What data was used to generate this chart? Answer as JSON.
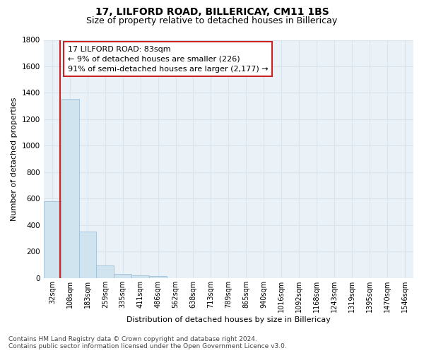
{
  "title1": "17, LILFORD ROAD, BILLERICAY, CM11 1BS",
  "title2": "Size of property relative to detached houses in Billericay",
  "xlabel": "Distribution of detached houses by size in Billericay",
  "ylabel": "Number of detached properties",
  "bar_labels": [
    "32sqm",
    "108sqm",
    "183sqm",
    "259sqm",
    "335sqm",
    "411sqm",
    "486sqm",
    "562sqm",
    "638sqm",
    "713sqm",
    "789sqm",
    "865sqm",
    "940sqm",
    "1016sqm",
    "1092sqm",
    "1168sqm",
    "1243sqm",
    "1319sqm",
    "1395sqm",
    "1470sqm",
    "1546sqm"
  ],
  "bar_values": [
    580,
    1355,
    350,
    95,
    32,
    18,
    14,
    0,
    0,
    0,
    0,
    0,
    0,
    0,
    0,
    0,
    0,
    0,
    0,
    0,
    0
  ],
  "bar_color": "#d0e4f0",
  "bar_edge_color": "#a0c0d8",
  "grid_color": "#d8e4ee",
  "plot_bg_color": "#eaf2f8",
  "fig_bg_color": "#ffffff",
  "vline_x": 0.42,
  "vline_color": "#cc2222",
  "annotation_line1": "17 LILFORD ROAD: 83sqm",
  "annotation_line2": "← 9% of detached houses are smaller (226)",
  "annotation_line3": "91% of semi-detached houses are larger (2,177) →",
  "annotation_box_color": "#cc2222",
  "annotation_box_bg": "#ffffff",
  "ylim": [
    0,
    1800
  ],
  "yticks": [
    0,
    200,
    400,
    600,
    800,
    1000,
    1200,
    1400,
    1600,
    1800
  ],
  "footer_text": "Contains HM Land Registry data © Crown copyright and database right 2024.\nContains public sector information licensed under the Open Government Licence v3.0.",
  "title1_fontsize": 10,
  "title2_fontsize": 9,
  "ylabel_fontsize": 8,
  "xlabel_fontsize": 8,
  "annotation_fontsize": 8,
  "footer_fontsize": 6.5,
  "tick_fontsize": 7
}
